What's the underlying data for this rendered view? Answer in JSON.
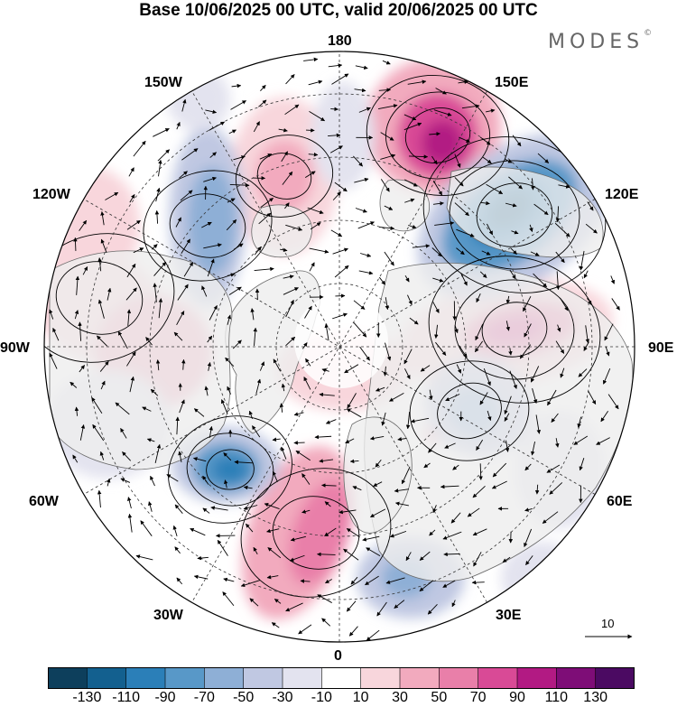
{
  "title": "Base 10/06/2025 00 UTC, valid 20/06/2025 00 UTC",
  "brand": "MODES",
  "brand_mark": "©",
  "longitude_labels": {
    "lon180": "180",
    "lon150W": "150W",
    "lon150E": "150E",
    "lon120W": "120W",
    "lon120E": "120E",
    "lon90W": "90W",
    "lon90E": "90E",
    "lon60W": "60W",
    "lon60E": "60E",
    "lon30W": "30W",
    "lon30E": "30E",
    "lon0": "0"
  },
  "vector_scale_label": "10",
  "colorbar": {
    "tick_labels": [
      "-130",
      "-110",
      "-90",
      "-70",
      "-50",
      "-30",
      "-10",
      "10",
      "30",
      "50",
      "70",
      "90",
      "110",
      "130"
    ],
    "colors": [
      "#0d3f5c",
      "#13608f",
      "#2b7fb8",
      "#5898c8",
      "#8eafd6",
      "#c0c8e2",
      "#e3e3ef",
      "#ffffff",
      "#f8d6dc",
      "#f2aabe",
      "#e97fa9",
      "#d94a96",
      "#b21a83",
      "#7e0d77",
      "#4b0a62"
    ]
  },
  "map_colors": {
    "land": "#eeeeee",
    "coast": "#6a6a6a",
    "grid": "#333333"
  }
}
